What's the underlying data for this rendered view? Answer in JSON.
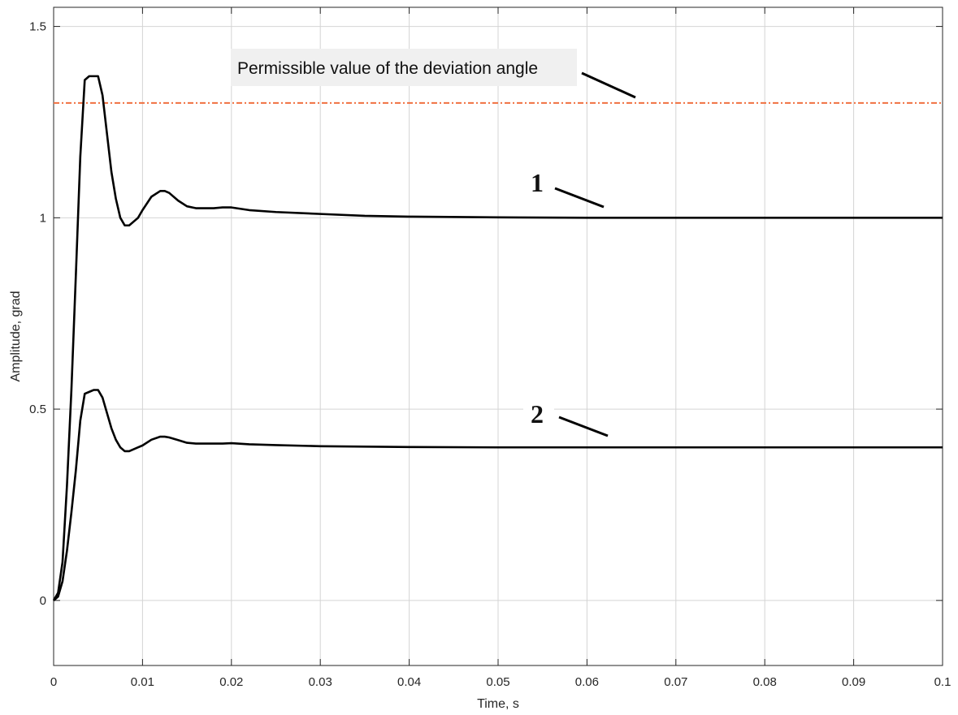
{
  "chart_data": {
    "type": "line",
    "title": "",
    "xlabel": "Time, s",
    "ylabel": "Amplitude, grad",
    "xlim": [
      0,
      0.1
    ],
    "ylim": [
      -0.17,
      1.55
    ],
    "xticks": [
      0,
      0.01,
      0.02,
      0.03,
      0.04,
      0.05,
      0.06,
      0.07,
      0.08,
      0.09,
      0.1
    ],
    "xtick_labels": [
      "0",
      "0.01",
      "0.02",
      "0.03",
      "0.04",
      "0.05",
      "0.06",
      "0.07",
      "0.08",
      "0.09",
      "0.1"
    ],
    "yticks": [
      0,
      0.5,
      1,
      1.5
    ],
    "ytick_labels": [
      "0",
      "0.5",
      "1",
      "1.5"
    ],
    "grid": true,
    "series": [
      {
        "label": "1",
        "color": "#000000",
        "x": [
          0,
          0.0005,
          0.001,
          0.0015,
          0.002,
          0.0025,
          0.003,
          0.0035,
          0.004,
          0.0045,
          0.005,
          0.0055,
          0.006,
          0.0065,
          0.007,
          0.0075,
          0.008,
          0.0085,
          0.009,
          0.0095,
          0.01,
          0.011,
          0.012,
          0.0125,
          0.013,
          0.014,
          0.015,
          0.016,
          0.017,
          0.018,
          0.019,
          0.02,
          0.022,
          0.025,
          0.03,
          0.035,
          0.04,
          0.05,
          0.06,
          0.07,
          0.08,
          0.09,
          0.1
        ],
        "y": [
          0,
          0.02,
          0.1,
          0.3,
          0.55,
          0.85,
          1.16,
          1.36,
          1.37,
          1.37,
          1.37,
          1.32,
          1.22,
          1.12,
          1.05,
          1.0,
          0.98,
          0.98,
          0.99,
          1.0,
          1.02,
          1.055,
          1.07,
          1.07,
          1.065,
          1.045,
          1.03,
          1.025,
          1.025,
          1.025,
          1.027,
          1.027,
          1.02,
          1.015,
          1.01,
          1.005,
          1.003,
          1.001,
          1.0,
          1.0,
          1.0,
          1.0,
          1.0
        ]
      },
      {
        "label": "2",
        "color": "#000000",
        "x": [
          0,
          0.0005,
          0.001,
          0.0015,
          0.002,
          0.0025,
          0.003,
          0.0035,
          0.004,
          0.0045,
          0.005,
          0.0055,
          0.006,
          0.0065,
          0.007,
          0.0075,
          0.008,
          0.0085,
          0.009,
          0.0095,
          0.01,
          0.011,
          0.012,
          0.0125,
          0.013,
          0.014,
          0.015,
          0.016,
          0.017,
          0.018,
          0.019,
          0.02,
          0.022,
          0.025,
          0.03,
          0.035,
          0.04,
          0.05,
          0.06,
          0.07,
          0.08,
          0.09,
          0.1
        ],
        "y": [
          0,
          0.01,
          0.05,
          0.13,
          0.23,
          0.34,
          0.47,
          0.54,
          0.545,
          0.55,
          0.55,
          0.53,
          0.49,
          0.45,
          0.42,
          0.4,
          0.39,
          0.39,
          0.395,
          0.4,
          0.405,
          0.42,
          0.428,
          0.428,
          0.426,
          0.419,
          0.412,
          0.41,
          0.41,
          0.41,
          0.41,
          0.411,
          0.408,
          0.406,
          0.403,
          0.402,
          0.401,
          0.4,
          0.4,
          0.4,
          0.4,
          0.4,
          0.4
        ]
      }
    ],
    "reference_lines": [
      {
        "y": 1.3,
        "color": "#f07040",
        "style": "dash-dot",
        "label": "Permissible value of the deviation angle"
      }
    ]
  }
}
